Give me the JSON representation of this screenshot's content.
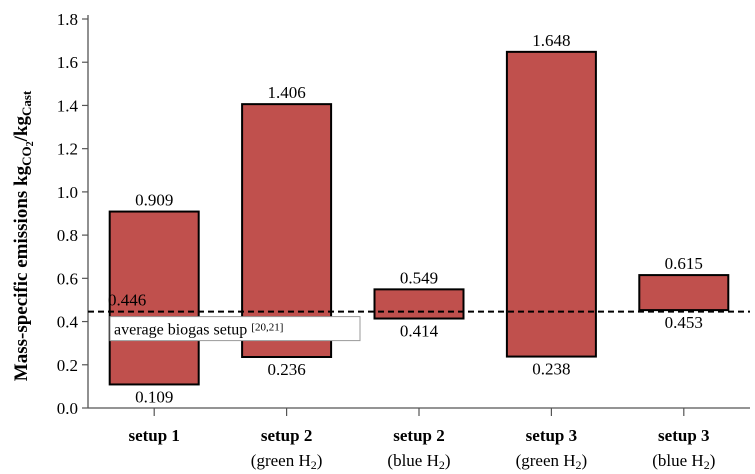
{
  "chart_data": {
    "type": "bar",
    "subtype": "floating-range",
    "ylabel": {
      "main": "Mass-specific emissions kg",
      "sub1": "CO",
      "sub1sub": "2",
      "sep": "/kg",
      "sub2": "Cast"
    },
    "ylim": [
      0.0,
      1.8
    ],
    "yticks": [
      "0.0",
      "0.2",
      "0.4",
      "0.6",
      "0.8",
      "1.0",
      "1.2",
      "1.4",
      "1.6",
      "1.8"
    ],
    "categories": [
      {
        "line1": "setup 1",
        "line2": ""
      },
      {
        "line1": "setup 2",
        "line2": "(green H",
        "line2sub": "2",
        "line2end": ")"
      },
      {
        "line1": "setup 2",
        "line2": "(blue H",
        "line2sub": "2",
        "line2end": ")"
      },
      {
        "line1": "setup 3",
        "line2": "(green H",
        "line2sub": "2",
        "line2end": ")"
      },
      {
        "line1": "setup 3",
        "line2": "(blue H",
        "line2sub": "2",
        "line2end": ")"
      }
    ],
    "low": [
      0.109,
      0.236,
      0.414,
      0.238,
      0.453
    ],
    "high": [
      0.909,
      1.406,
      0.549,
      1.648,
      0.615
    ],
    "low_labels": [
      "0.109",
      "0.236",
      "0.414",
      "0.238",
      "0.453"
    ],
    "high_labels": [
      "0.909",
      "1.406",
      "0.549",
      "1.648",
      "0.615"
    ],
    "reference_line": {
      "value": 0.446,
      "value_label": "0.446",
      "label": "average biogas setup",
      "citation": "[20,21]",
      "style": "dashed"
    },
    "bar_color": "#c0504d",
    "grid": false
  }
}
